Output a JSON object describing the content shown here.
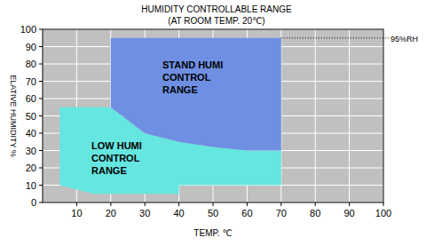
{
  "chart_data": {
    "type": "area",
    "title": "HUMIDITY CONTROLLABLE RANGE",
    "subtitle": "(AT ROOM TEMP. 20℃)",
    "x_label": "TEMP. ℃",
    "y_label": "ELATIVE HUMIDITY %",
    "xlim": [
      0,
      100
    ],
    "xticks": [
      10,
      20,
      30,
      40,
      50,
      60,
      70,
      80,
      90,
      100
    ],
    "ylim": [
      0,
      100
    ],
    "yticks": [
      0,
      10,
      20,
      30,
      40,
      50,
      60,
      70,
      80,
      90,
      100
    ],
    "grid": true,
    "series": [
      {
        "name": "LOW HUMI\nCONTROL\nRANGE",
        "color": "#66e6e0",
        "x": [
          5,
          20,
          30,
          40,
          50,
          60,
          70,
          70,
          40,
          40,
          15,
          5
        ],
        "values": [
          55,
          55,
          40,
          35,
          32,
          30,
          30,
          10,
          10,
          5,
          5,
          10
        ]
      },
      {
        "name": "STAND HUMI\nCONTROL\nRANGE",
        "color": "#6f8fe2",
        "x": [
          20,
          70,
          70,
          60,
          50,
          40,
          30,
          20
        ],
        "values": [
          95,
          95,
          30,
          30,
          32,
          35,
          40,
          55
        ]
      }
    ],
    "annotations": [
      {
        "text": "95%RH",
        "x": 70,
        "y": 95
      }
    ]
  }
}
